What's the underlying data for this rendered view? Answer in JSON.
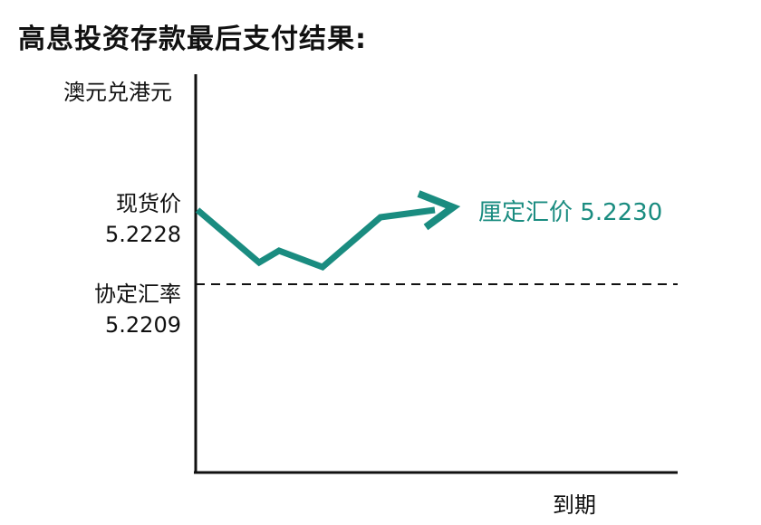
{
  "title": "高息投资存款最后支付结果:",
  "y_axis_label": "澳元兑港元",
  "x_axis_label": "到期",
  "spot": {
    "label": "现货价",
    "value": "5.2228"
  },
  "strike": {
    "label": "协定汇率",
    "value": "5.2209"
  },
  "fixing": {
    "label": "厘定汇价",
    "value": "5.2230"
  },
  "colors": {
    "path": "#1a8c80",
    "axis": "#111111",
    "text": "#111111"
  }
}
